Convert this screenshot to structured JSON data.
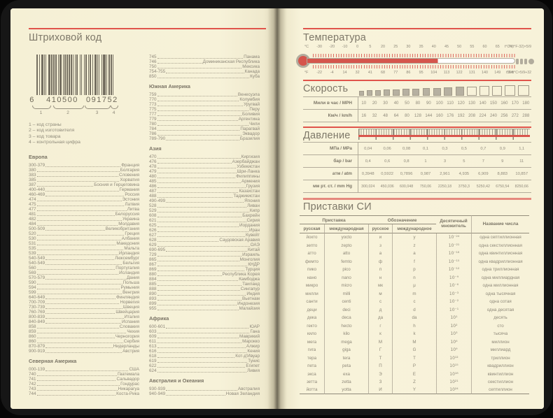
{
  "colors": {
    "paper": "#f7f2d9",
    "accent_red": "#e0544b",
    "salmon_rule": "#e5897e",
    "text": "#8f897b",
    "text_dark": "#7c7667",
    "square_fill": "#b6b0a1"
  },
  "left_page": {
    "title": "Штриховой код",
    "barcode": {
      "number_groups": [
        "6",
        "410500",
        "091752"
      ],
      "segment_labels": [
        "1",
        "2",
        "3",
        "4"
      ],
      "legend": [
        "1 – код страны",
        "2 – код изготовителя",
        "3 – код товара",
        "4 – контрольная цифра"
      ]
    },
    "columns": [
      {
        "sections": [
          {
            "header": "Европа",
            "items": [
              [
                "300-379",
                "Франция"
              ],
              [
                "380",
                "Болгария"
              ],
              [
                "383",
                "Словения"
              ],
              [
                "385",
                "Хорватия"
              ],
              [
                "387",
                "Босния и Герцеговина"
              ],
              [
                "400-440",
                "Германия"
              ],
              [
                "460-469",
                "Россия"
              ],
              [
                "474",
                "Эстония"
              ],
              [
                "475",
                "Латвия"
              ],
              [
                "477",
                "Литва"
              ],
              [
                "481",
                "Белоруссия"
              ],
              [
                "482",
                "Украина"
              ],
              [
                "484",
                "Молдавия"
              ],
              [
                "500-509",
                "Великобритания"
              ],
              [
                "520",
                "Греция"
              ],
              [
                "530",
                "Албания"
              ],
              [
                "531",
                "Македония"
              ],
              [
                "535",
                "Мальта"
              ],
              [
                "539",
                "Ирландия"
              ],
              [
                "540-549",
                "Люксембург"
              ],
              [
                "540-549",
                "Бельгия"
              ],
              [
                "560",
                "Португалия"
              ],
              [
                "569",
                "Исландия"
              ],
              [
                "570-579",
                "Дания"
              ],
              [
                "590",
                "Польша"
              ],
              [
                "594",
                "Румыния"
              ],
              [
                "599",
                "Венгрия"
              ],
              [
                "640-649",
                "Финляндия"
              ],
              [
                "700-709",
                "Норвегия"
              ],
              [
                "730-739",
                "Швеция"
              ],
              [
                "760-769",
                "Швейцария"
              ],
              [
                "800-839",
                "Италия"
              ],
              [
                "840-849",
                "Испания"
              ],
              [
                "858",
                "Словакия"
              ],
              [
                "859",
                "Чехия"
              ],
              [
                "860",
                "Черногория"
              ],
              [
                "860",
                "Сербия"
              ],
              [
                "870-879",
                "Нидерланды"
              ],
              [
                "900-919",
                "Австрия"
              ]
            ]
          },
          {
            "header": "Северная Америка",
            "items": [
              [
                "000-139",
                "США"
              ],
              [
                "740",
                "Гватемала"
              ],
              [
                "741",
                "Сальвадор"
              ],
              [
                "742",
                "Гондурас"
              ],
              [
                "743",
                "Никарагуа"
              ],
              [
                "744",
                "Коста-Рика"
              ]
            ]
          }
        ]
      },
      {
        "sections": [
          {
            "header": "",
            "items": [
              [
                "745",
                "Панама"
              ],
              [
                "746",
                "Доминиканская Республика"
              ],
              [
                "750",
                "Мексика"
              ],
              [
                "754-755",
                "Канада"
              ],
              [
                "850",
                "Куба"
              ]
            ]
          },
          {
            "header": "Южная Америка",
            "items": [
              [
                "759",
                "Венесуэла"
              ],
              [
                "770",
                "Колумбия"
              ],
              [
                "773",
                "Уругвай"
              ],
              [
                "775",
                "Перу"
              ],
              [
                "777",
                "Боливия"
              ],
              [
                "779",
                "Аргентина"
              ],
              [
                "780",
                "Чили"
              ],
              [
                "784",
                "Парагвай"
              ],
              [
                "786",
                "Эквадор"
              ],
              [
                "789-790",
                "Бразилия"
              ]
            ]
          },
          {
            "header": "Азия",
            "items": [
              [
                "470",
                "Киргизия"
              ],
              [
                "476",
                "Азербайджан"
              ],
              [
                "478",
                "Узбекистан"
              ],
              [
                "479",
                "Шри-Ланка"
              ],
              [
                "480",
                "Филиппины"
              ],
              [
                "485",
                "Армения"
              ],
              [
                "486",
                "Грузия"
              ],
              [
                "487",
                "Казахстан"
              ],
              [
                "488",
                "Таджикистан"
              ],
              [
                "490-499",
                "Япония"
              ],
              [
                "528",
                "Ливан"
              ],
              [
                "529",
                "Кипр"
              ],
              [
                "608",
                "Бахрейн"
              ],
              [
                "621",
                "Сирия"
              ],
              [
                "625",
                "Иордания"
              ],
              [
                "626",
                "Иран"
              ],
              [
                "627",
                "Кувейт"
              ],
              [
                "628",
                "Саудовская Аравия"
              ],
              [
                "629",
                "ОАЭ"
              ],
              [
                "690-695",
                "Китай"
              ],
              [
                "729",
                "Израиль"
              ],
              [
                "865",
                "Монголия"
              ],
              [
                "867",
                "КНДР"
              ],
              [
                "869",
                "Турция"
              ],
              [
                "880",
                "Республика Корея"
              ],
              [
                "884",
                "Камбоджа"
              ],
              [
                "885",
                "Таиланд"
              ],
              [
                "888",
                "Сингапур"
              ],
              [
                "890",
                "Индия"
              ],
              [
                "893",
                "Вьетнам"
              ],
              [
                "899",
                "Индонезия"
              ],
              [
                "955",
                "Малайзия"
              ]
            ]
          },
          {
            "header": "Африка",
            "items": [
              [
                "600-601",
                "ЮАР"
              ],
              [
                "603",
                "Гана"
              ],
              [
                "609",
                "Маврикий"
              ],
              [
                "611",
                "Марокко"
              ],
              [
                "613",
                "Алжир"
              ],
              [
                "616",
                "Кения"
              ],
              [
                "618",
                "Кот-д'Ивуар"
              ],
              [
                "619",
                "Тунис"
              ],
              [
                "622",
                "Египет"
              ],
              [
                "624",
                "Ливия"
              ]
            ]
          },
          {
            "header": "Австралия и Океания",
            "items": [
              [
                "930-939",
                "Австралия"
              ],
              [
                "940-949",
                "Новая Зеландия"
              ]
            ]
          }
        ]
      }
    ]
  },
  "right_page": {
    "temperature": {
      "title": "Температура",
      "celsius_unit": "°C",
      "fahrenheit_unit": "°F",
      "celsius_labels": [
        "-30",
        "-20",
        "-10",
        "0",
        "5",
        "20",
        "25",
        "30",
        "35",
        "40",
        "45",
        "50",
        "55",
        "60",
        "65",
        "70"
      ],
      "fahrenheit_labels": [
        "-22",
        "-4",
        "14",
        "32",
        "41",
        "68",
        "77",
        "86",
        "95",
        "104",
        "113",
        "122",
        "131",
        "140",
        "149",
        "158"
      ],
      "celsius_formula": "t°C=(t°F-32)×5/9",
      "fahrenheit_formula": "t°F=t°C×5/9+32"
    },
    "speed": {
      "title": "Скорость",
      "squares": {
        "total": 16,
        "filled": 11
      },
      "rows": [
        {
          "label": "Мили в час / MPH",
          "values": [
            "10",
            "20",
            "30",
            "40",
            "50",
            "80",
            "90",
            "100",
            "110",
            "120",
            "130",
            "140",
            "150",
            "160",
            "170",
            "180"
          ]
        },
        {
          "label": "Км/ч / km/h",
          "values": [
            "16",
            "32",
            "48",
            "64",
            "80",
            "128",
            "144",
            "160",
            "176",
            "192",
            "208",
            "224",
            "240",
            "256",
            "272",
            "288"
          ]
        }
      ]
    },
    "pressure": {
      "title": "Давление",
      "rows": [
        {
          "label": "МПа / MPa",
          "values": [
            "0,04",
            "0,06",
            "0,08",
            "0,1",
            "0,3",
            "0,5",
            "0,7",
            "0,9",
            "1,1"
          ]
        },
        {
          "label": "бар / bar",
          "values": [
            "0,4",
            "0,6",
            "0,8",
            "1",
            "3",
            "5",
            "7",
            "9",
            "11"
          ]
        },
        {
          "label": "атм / atm",
          "values": [
            "0,3948",
            "0,5922",
            "0,7896",
            "0,987",
            "2,961",
            "4,935",
            "6,909",
            "8,883",
            "10,857"
          ]
        },
        {
          "label": "мм рт. ст. / mm Hg",
          "values": [
            "300,024",
            "450,036",
            "600,048",
            "750,06",
            "2250,18",
            "3750,3",
            "5250,42",
            "6750,54",
            "8250,66"
          ]
        }
      ]
    },
    "si": {
      "title": "Приставки СИ",
      "groups": [
        "Приставка",
        "Обозначение",
        "Десятичный множитель",
        "Название числа"
      ],
      "sub_headers": [
        "русская",
        "международная",
        "русское",
        "международное"
      ],
      "rows": [
        [
          "йокто",
          "yocto",
          "и",
          "y",
          "10⁻²⁴",
          "одна септиллионная"
        ],
        [
          "зепто",
          "zepto",
          "з",
          "z",
          "10⁻²¹",
          "одна секстиллионная"
        ],
        [
          "атто",
          "atto",
          "а",
          "a",
          "10⁻¹⁸",
          "одна квинтиллионная"
        ],
        [
          "фемто",
          "femto",
          "ф",
          "f",
          "10⁻¹⁵",
          "одна квадриллионная"
        ],
        [
          "пико",
          "pico",
          "п",
          "p",
          "10⁻¹²",
          "одна триллионная"
        ],
        [
          "нано",
          "nano",
          "н",
          "n",
          "10⁻⁹",
          "одна миллиардная"
        ],
        [
          "микро",
          "micro",
          "мк",
          "μ",
          "10⁻⁶",
          "одна миллионная"
        ],
        [
          "милли",
          "milli",
          "м",
          "m",
          "10⁻³",
          "одна тысячная"
        ],
        [
          "санти",
          "centi",
          "с",
          "c",
          "10⁻²",
          "одна сотая"
        ],
        [
          "деци",
          "deci",
          "д",
          "d",
          "10⁻¹",
          "одна десятая"
        ],
        [
          "дека",
          "deca",
          "да",
          "da",
          "10¹",
          "десять"
        ],
        [
          "гекто",
          "hecto",
          "г",
          "h",
          "10²",
          "сто"
        ],
        [
          "кило",
          "kilo",
          "к",
          "k",
          "10³",
          "тысяча"
        ],
        [
          "мега",
          "mega",
          "М",
          "M",
          "10⁶",
          "миллион"
        ],
        [
          "гига",
          "giga",
          "Г",
          "G",
          "10⁹",
          "миллиард"
        ],
        [
          "тера",
          "tera",
          "Т",
          "T",
          "10¹²",
          "триллион"
        ],
        [
          "пета",
          "peta",
          "П",
          "P",
          "10¹⁵",
          "квадриллион"
        ],
        [
          "экса",
          "exa",
          "Э",
          "E",
          "10¹⁸",
          "квинтиллион"
        ],
        [
          "зетта",
          "zetta",
          "З",
          "Z",
          "10²¹",
          "секстиллион"
        ],
        [
          "йотта",
          "yotta",
          "И",
          "Y",
          "10²⁴",
          "септиллион"
        ]
      ]
    }
  }
}
